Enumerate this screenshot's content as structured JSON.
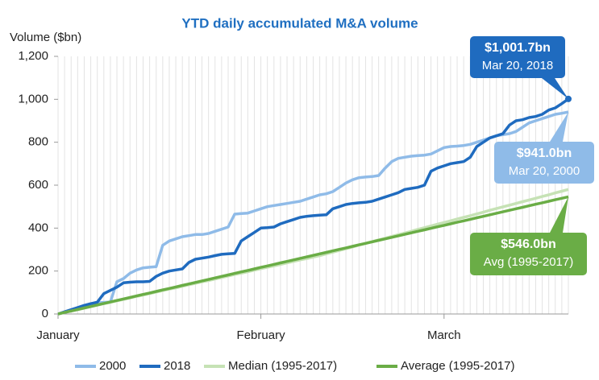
{
  "chart_data": {
    "type": "line",
    "title": "YTD daily accumulated M&A volume",
    "y_label": "Volume ($bn)",
    "categories": [
      "January",
      null,
      null,
      null,
      null,
      null,
      null,
      null,
      null,
      null,
      null,
      null,
      null,
      null,
      null,
      null,
      null,
      null,
      null,
      null,
      null,
      null,
      null,
      null,
      null,
      null,
      null,
      null,
      null,
      null,
      null,
      "February",
      null,
      null,
      null,
      null,
      null,
      null,
      null,
      null,
      null,
      null,
      null,
      null,
      null,
      null,
      null,
      null,
      null,
      null,
      null,
      null,
      null,
      null,
      null,
      null,
      null,
      null,
      null,
      "March",
      null,
      null,
      null,
      null,
      null,
      null,
      null,
      null,
      null,
      null,
      null,
      null,
      null,
      null,
      null,
      null,
      null,
      null,
      null
    ],
    "series": [
      {
        "name": "2000",
        "color": "#8fbbe8",
        "values": [
          0,
          8,
          18,
          28,
          38,
          48,
          52,
          54,
          56,
          150,
          165,
          190,
          205,
          215,
          218,
          220,
          320,
          340,
          350,
          360,
          365,
          370,
          370,
          375,
          385,
          395,
          405,
          465,
          468,
          470,
          480,
          490,
          500,
          505,
          510,
          515,
          520,
          525,
          535,
          545,
          555,
          560,
          570,
          590,
          610,
          625,
          635,
          638,
          640,
          645,
          680,
          710,
          725,
          730,
          735,
          738,
          740,
          745,
          760,
          775,
          780,
          782,
          785,
          790,
          800,
          810,
          820,
          830,
          835,
          840,
          850,
          870,
          890,
          900,
          910,
          920,
          930,
          935,
          941
        ]
      },
      {
        "name": "2018",
        "color": "#1f6bbf",
        "values": [
          0,
          10,
          20,
          30,
          40,
          48,
          55,
          95,
          110,
          125,
          145,
          148,
          150,
          150,
          152,
          175,
          190,
          200,
          205,
          210,
          240,
          255,
          260,
          265,
          272,
          278,
          280,
          282,
          340,
          360,
          380,
          400,
          402,
          405,
          420,
          430,
          440,
          450,
          455,
          458,
          460,
          462,
          490,
          500,
          510,
          515,
          518,
          520,
          525,
          535,
          545,
          555,
          565,
          580,
          585,
          590,
          600,
          665,
          680,
          690,
          700,
          705,
          710,
          730,
          780,
          800,
          820,
          830,
          840,
          880,
          900,
          905,
          915,
          920,
          930,
          950,
          960,
          980,
          1001.7
        ]
      },
      {
        "name": "Median (1995-2017)",
        "color": "#c6e2b5",
        "values": [
          0,
          7,
          14,
          20,
          27,
          34,
          41,
          48,
          54,
          61,
          68,
          75,
          82,
          88,
          95,
          102,
          109,
          116,
          122,
          129,
          136,
          143,
          150,
          156,
          163,
          170,
          177,
          184,
          190,
          197,
          204,
          211,
          218,
          224,
          231,
          238,
          245,
          252,
          258,
          265,
          272,
          280,
          288,
          296,
          304,
          312,
          321,
          329,
          337,
          345,
          353,
          361,
          369,
          377,
          385,
          394,
          402,
          410,
          418,
          426,
          434,
          442,
          450,
          458,
          466,
          474,
          483,
          491,
          499,
          507,
          515,
          523,
          531,
          539,
          547,
          555,
          564,
          572,
          580
        ]
      },
      {
        "name": "Average (1995-2017)",
        "color": "#6aad46",
        "values": [
          0,
          7,
          14,
          21,
          28,
          35,
          42,
          49,
          56,
          63,
          70,
          77,
          84,
          91,
          98,
          105,
          112,
          119,
          126,
          133,
          140,
          147,
          154,
          161,
          168,
          175,
          182,
          189,
          196,
          203,
          210,
          217,
          224,
          231,
          238,
          245,
          252,
          259,
          266,
          273,
          280,
          287,
          294,
          301,
          308,
          315,
          322,
          329,
          336,
          343,
          350,
          357,
          364,
          371,
          378,
          385,
          392,
          399,
          406,
          413,
          420,
          427,
          434,
          441,
          448,
          455,
          462,
          469,
          476,
          483,
          490,
          497,
          504,
          511,
          518,
          525,
          532,
          539,
          546
        ]
      }
    ],
    "ylim": [
      0,
      1200
    ],
    "yticks": [
      0,
      200,
      400,
      600,
      800,
      {
        "value": 1000,
        "label": "1,000"
      },
      {
        "value": 1200,
        "label": "1,200"
      }
    ],
    "xgrid": true,
    "legend": "bottom",
    "annotations": [
      {
        "label": "$1,001.7bn",
        "sublabel": "Mar 20, 2018"
      },
      {
        "label": "$941.0bn",
        "sublabel": "Mar 20, 2000"
      },
      {
        "label": "$546.0bn",
        "sublabel": "Avg (1995-2017)"
      }
    ]
  }
}
